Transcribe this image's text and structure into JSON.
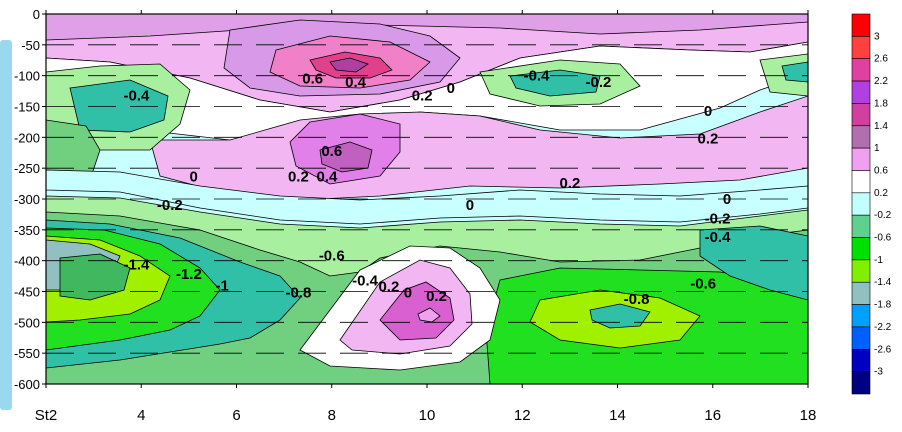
{
  "chart_data": {
    "type": "heatmap",
    "title": "",
    "xlabel": "",
    "ylabel": "",
    "x_ticks": [
      {
        "value": 2,
        "label": "St2"
      },
      {
        "value": 4,
        "label": "4"
      },
      {
        "value": 6,
        "label": "6"
      },
      {
        "value": 8,
        "label": "8"
      },
      {
        "value": 10,
        "label": "10"
      },
      {
        "value": 12,
        "label": "12"
      },
      {
        "value": 14,
        "label": "14"
      },
      {
        "value": 16,
        "label": "16"
      },
      {
        "value": 18,
        "label": "18"
      }
    ],
    "y_ticks": [
      "0",
      "-50",
      "-100",
      "-150",
      "-200",
      "-250",
      "-300",
      "-350",
      "-400",
      "-450",
      "-500",
      "-550",
      "-600"
    ],
    "y_values": [
      0,
      -50,
      -100,
      -150,
      -200,
      -250,
      -300,
      -350,
      -400,
      -450,
      -500,
      -550,
      -600
    ],
    "xlim": [
      2,
      18
    ],
    "ylim": [
      -600,
      0
    ],
    "colorbar": {
      "levels": [
        "3",
        "2.6",
        "2.2",
        "1.8",
        "1.4",
        "1",
        "0.6",
        "0.2",
        "-0.2",
        "-0.6",
        "-1",
        "-1.4",
        "-1.8",
        "-2.2",
        "-2.6",
        "-3"
      ],
      "colors": [
        "#ff0000",
        "#ff4040",
        "#e040a0",
        "#b040e0",
        "#d040a0",
        "#b070b0",
        "#f0a0f0",
        "#ffffff",
        "#c0ffff",
        "#60d090",
        "#00e000",
        "#80f000",
        "#90c0c0",
        "#00a0ff",
        "#0060ff",
        "#0000c0",
        "#000080"
      ]
    },
    "contour_labels": [
      {
        "text": "0.6",
        "x": 7.6,
        "y": -113
      },
      {
        "text": "0.4",
        "x": 8.5,
        "y": -118
      },
      {
        "text": "0.2",
        "x": 9.9,
        "y": -140
      },
      {
        "text": "0",
        "x": 10.5,
        "y": -128
      },
      {
        "text": "-0.4",
        "x": 12.3,
        "y": -108
      },
      {
        "text": "-0.2",
        "x": 13.6,
        "y": -118
      },
      {
        "text": "-0.4",
        "x": 3.9,
        "y": -140
      },
      {
        "text": "0",
        "x": 15.9,
        "y": -165
      },
      {
        "text": "0.2",
        "x": 15.9,
        "y": -210
      },
      {
        "text": "0.6",
        "x": 8.0,
        "y": -230
      },
      {
        "text": "0.2",
        "x": 7.3,
        "y": -272
      },
      {
        "text": "0.4",
        "x": 7.9,
        "y": -272
      },
      {
        "text": "0",
        "x": 5.1,
        "y": -272
      },
      {
        "text": "0.2",
        "x": 13.0,
        "y": -282
      },
      {
        "text": "-0.2",
        "x": 4.6,
        "y": -318
      },
      {
        "text": "0",
        "x": 10.9,
        "y": -318
      },
      {
        "text": "0",
        "x": 16.3,
        "y": -308
      },
      {
        "text": "-0.2",
        "x": 16.1,
        "y": -340
      },
      {
        "text": "-0.4",
        "x": 16.1,
        "y": -370
      },
      {
        "text": "-0.6",
        "x": 8.0,
        "y": -400
      },
      {
        "text": "-1.4",
        "x": 3.9,
        "y": -414
      },
      {
        "text": "-1.2",
        "x": 5.0,
        "y": -430
      },
      {
        "text": "-1",
        "x": 5.7,
        "y": -448
      },
      {
        "text": "-0.8",
        "x": 7.3,
        "y": -460
      },
      {
        "text": "-0.4",
        "x": 8.7,
        "y": -440
      },
      {
        "text": "0.2",
        "x": 9.2,
        "y": -450
      },
      {
        "text": "0",
        "x": 9.6,
        "y": -460
      },
      {
        "text": "0.2",
        "x": 10.2,
        "y": -465
      },
      {
        "text": "-0.8",
        "x": 14.4,
        "y": -470
      },
      {
        "text": "-0.6",
        "x": 15.8,
        "y": -445
      }
    ]
  }
}
